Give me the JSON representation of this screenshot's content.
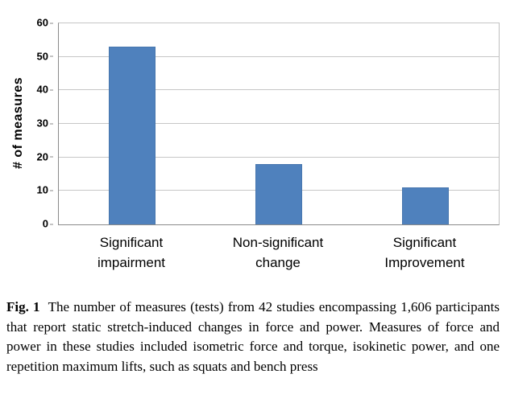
{
  "chart_data": {
    "type": "bar",
    "categories": [
      "Significant\nimpairment",
      "Non-significant\nchange",
      "Significant\nImprovement"
    ],
    "values": [
      53,
      18,
      11
    ],
    "title": "",
    "xlabel": "",
    "ylabel": "# of measures",
    "ylim": [
      0,
      60
    ],
    "yticks": [
      0,
      10,
      20,
      30,
      40,
      50,
      60
    ],
    "grid": true,
    "legend": false,
    "bar_color": "#4F81BD",
    "gridline_color": "#c6c6c6"
  },
  "caption": {
    "label": "Fig. 1",
    "text": "The number of measures (tests) from 42 studies encompassing 1,606 participants that report static stretch-induced changes in force and power. Measures of force and power in these studies included isometric force and torque, isokinetic power, and one repetition maximum lifts, such as squats and bench press"
  }
}
